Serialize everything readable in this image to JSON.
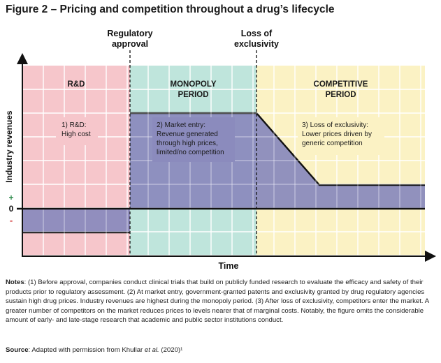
{
  "title": "Figure 2 – Pricing and competition throughout a drug’s lifecycle",
  "milestones": {
    "regulatory": [
      "Regulatory",
      "approval"
    ],
    "loss": [
      "Loss of",
      "exclusivity"
    ]
  },
  "phases": {
    "rd": [
      "R&D"
    ],
    "monopoly": [
      "MONOPOLY",
      "PERIOD"
    ],
    "competitive": [
      "COMPETITIVE",
      "PERIOD"
    ]
  },
  "callouts": {
    "rd": [
      "1) R&D:",
      "High cost"
    ],
    "monopoly": [
      "2) Market entry:",
      "Revenue generated",
      "through high prices,",
      "limited/no competition"
    ],
    "competitive": [
      "3) Loss of exclusivity:",
      "Lower prices driven by",
      "generic competition"
    ]
  },
  "axis": {
    "y_label": "Industry revenues",
    "x_label": "Time",
    "plus": "+",
    "zero": "0",
    "minus": "-"
  },
  "notes": {
    "label": "Notes",
    "text": ": (1) Before approval, companies conduct clinical trials that build on publicly funded research to evaluate the efficacy and safety of their products prior to regulatory assessment. (2) At market entry, government-granted patents and exclusivity granted by drug regulatory agencies sustain high drug prices. Industry revenues are highest during the monopoly period. (3) After loss of exclusivity, competitors enter the market. A greater number of competitors on the market reduces prices to levels nearer that of marginal costs. Notably, the figure omits the considerable amount of early- and late-stage research that academic and public sector institutions conduct."
  },
  "source": {
    "label": "Source",
    "text_before": ": Adapted with permission from Khullar ",
    "italic": "et al.",
    "text_after": " (2020)¹"
  },
  "colors": {
    "rd_zone": "#f6c6cb",
    "monopoly_zone": "#bfe5dc",
    "competitive_zone": "#fbf2c4",
    "revenue_fill": "#8b8bbd",
    "revenue_line": "#111111",
    "plus_sign": "#2c8a4a",
    "minus_sign": "#d03030",
    "grid": "#ffffff"
  },
  "chart_data": {
    "type": "area",
    "title": "Figure 2 – Pricing and competition throughout a drug’s lifecycle",
    "xlabel": "Time",
    "ylabel": "Industry revenues",
    "phases": [
      "R&D",
      "MONOPOLY PERIOD",
      "COMPETITIVE PERIOD"
    ],
    "milestones": [
      "Regulatory approval",
      "Loss of exclusivity"
    ],
    "series": [
      {
        "values_by_stage": [
          {
            "stage": "R&D",
            "level": "negative"
          },
          {
            "stage": "Market entry",
            "level": "high"
          },
          {
            "stage": "Loss of exclusivity",
            "level": "declining"
          },
          {
            "stage": "Competitive period",
            "level": "low"
          }
        ]
      }
    ],
    "grid": true
  }
}
